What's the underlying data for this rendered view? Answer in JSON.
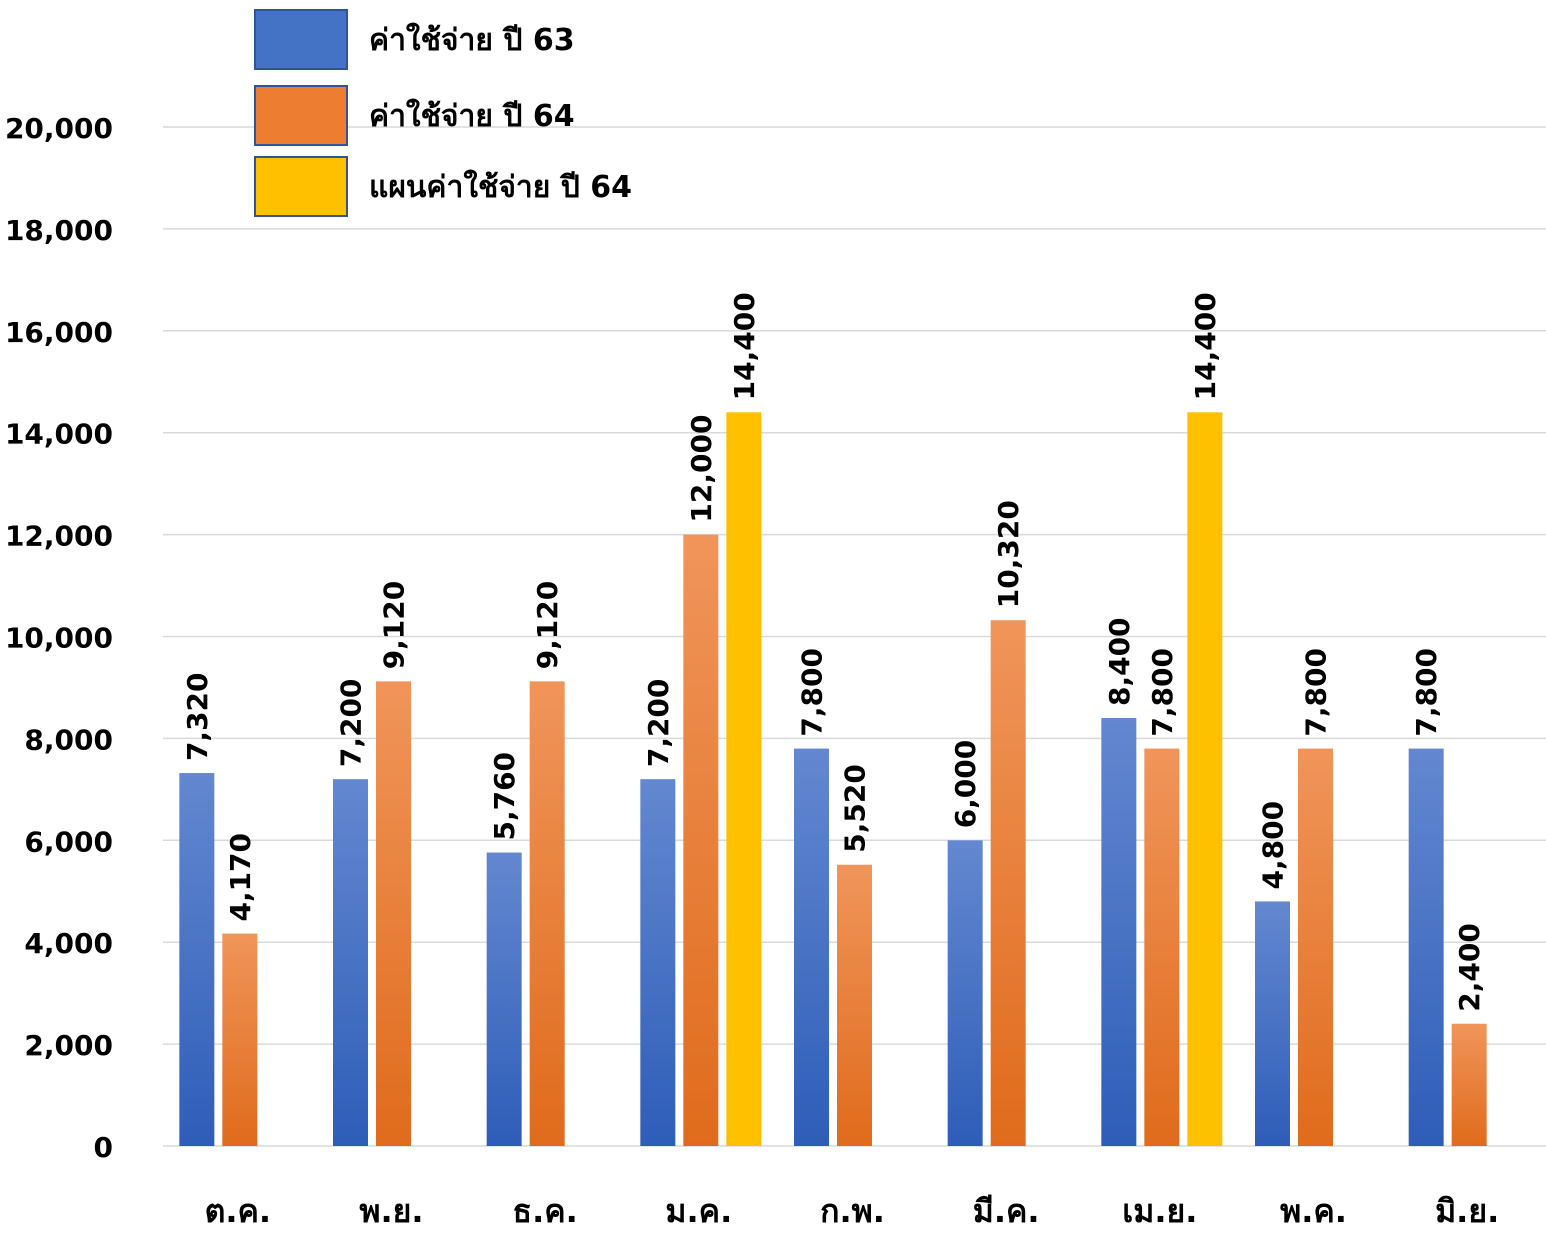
{
  "chart_data": {
    "type": "bar",
    "categories": [
      "ต.ค.",
      "พ.ย.",
      "ธ.ค.",
      "ม.ค.",
      "ก.พ.",
      "มี.ค.",
      "เม.ย.",
      "พ.ค.",
      "มิ.ย."
    ],
    "series": [
      {
        "name": "ค่าใช้จ่าย ปี 63",
        "color": "#4472C4",
        "values": [
          7320,
          7200,
          5760,
          7200,
          7800,
          6000,
          8400,
          4800,
          7800
        ],
        "labels": [
          "7,320",
          "7,200",
          "5,760",
          "7,200",
          "7,800",
          "6,000",
          "8,400",
          "4,800",
          "7,800"
        ]
      },
      {
        "name": "ค่าใช้จ่าย ปี 64",
        "color": "#ED7D31",
        "values": [
          4170,
          9120,
          9120,
          12000,
          5520,
          10320,
          7800,
          7800,
          2400
        ],
        "labels": [
          "4,170",
          "9,120",
          "9,120",
          "12,000",
          "5,520",
          "10,320",
          "7,800",
          "7,800",
          "2,400"
        ]
      },
      {
        "name": "แผนค่าใช้จ่าย ปี 64",
        "color": "#FFC000",
        "values": [
          null,
          null,
          null,
          14400,
          null,
          null,
          14400,
          null,
          null
        ],
        "labels": [
          null,
          null,
          null,
          "14,400",
          null,
          null,
          "14,400",
          null,
          null
        ]
      }
    ],
    "yticks": [
      0,
      2000,
      4000,
      6000,
      8000,
      10000,
      12000,
      14000,
      16000,
      18000,
      20000
    ],
    "ytick_labels": [
      "0",
      "2,000",
      "4,000",
      "6,000",
      "8,000",
      "10,000",
      "12,000",
      "14,000",
      "16,000",
      "18,000",
      "20,000"
    ],
    "ylim": [
      0,
      20000
    ],
    "grid": true,
    "legend_position": "top-left",
    "title": "",
    "xlabel": "",
    "ylabel": ""
  }
}
